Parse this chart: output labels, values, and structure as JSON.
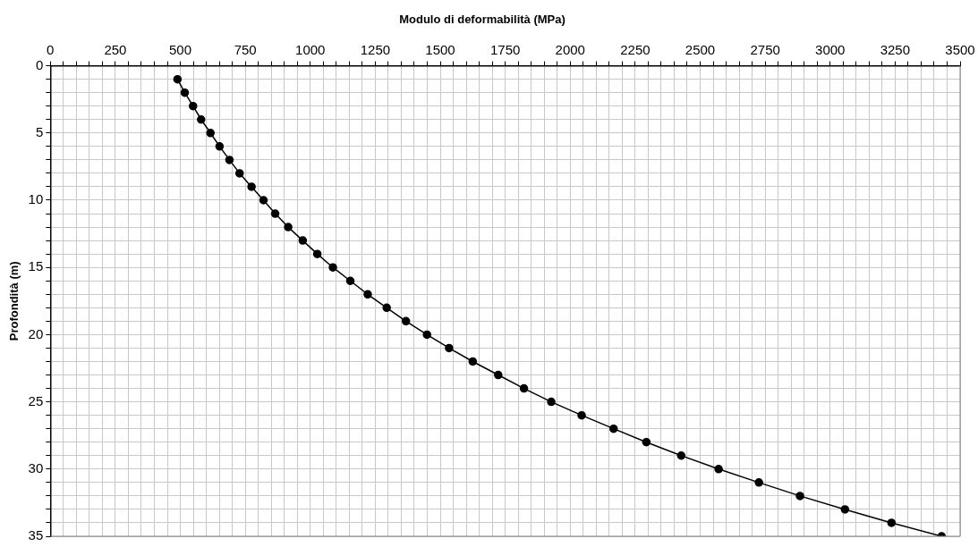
{
  "chart_data": {
    "type": "line",
    "title": "Modulo di deformabilità (MPa)",
    "ylabel": "Profondità (m)",
    "series": [
      {
        "color": "#000000",
        "x": [
          489,
          517,
          549,
          580,
          616,
          651,
          689,
          728,
          774,
          820,
          865,
          915,
          971,
          1027,
          1087,
          1154,
          1221,
          1294,
          1368,
          1449,
          1534,
          1625,
          1723,
          1822,
          1927,
          2044,
          2167,
          2293,
          2427,
          2571,
          2726,
          2884,
          3057,
          3236,
          3429
        ],
        "values": [
          1,
          2,
          3,
          4,
          5,
          6,
          7,
          8,
          9,
          10,
          11,
          12,
          13,
          14,
          15,
          16,
          17,
          18,
          19,
          20,
          21,
          22,
          23,
          24,
          25,
          26,
          27,
          28,
          29,
          30,
          31,
          32,
          33,
          34,
          35
        ]
      }
    ],
    "xlim": [
      0,
      3500
    ],
    "xticks": [
      0,
      {
        "value": 50,
        "label": null
      },
      {
        "value": 100,
        "label": null
      },
      {
        "value": 150,
        "label": null
      },
      {
        "value": 200,
        "label": null
      },
      250,
      {
        "value": 300,
        "label": null
      },
      {
        "value": 350,
        "label": null
      },
      {
        "value": 400,
        "label": null
      },
      {
        "value": 450,
        "label": null
      },
      500,
      {
        "value": 550,
        "label": null
      },
      {
        "value": 600,
        "label": null
      },
      {
        "value": 650,
        "label": null
      },
      {
        "value": 700,
        "label": null
      },
      750,
      {
        "value": 800,
        "label": null
      },
      {
        "value": 850,
        "label": null
      },
      {
        "value": 900,
        "label": null
      },
      {
        "value": 950,
        "label": null
      },
      1000,
      {
        "value": 1050,
        "label": null
      },
      {
        "value": 1100,
        "label": null
      },
      {
        "value": 1150,
        "label": null
      },
      {
        "value": 1200,
        "label": null
      },
      1250,
      {
        "value": 1300,
        "label": null
      },
      {
        "value": 1350,
        "label": null
      },
      {
        "value": 1400,
        "label": null
      },
      {
        "value": 1450,
        "label": null
      },
      1500,
      {
        "value": 1550,
        "label": null
      },
      {
        "value": 1600,
        "label": null
      },
      {
        "value": 1650,
        "label": null
      },
      {
        "value": 1700,
        "label": null
      },
      1750,
      {
        "value": 1800,
        "label": null
      },
      {
        "value": 1850,
        "label": null
      },
      {
        "value": 1900,
        "label": null
      },
      {
        "value": 1950,
        "label": null
      },
      2000,
      {
        "value": 2050,
        "label": null
      },
      {
        "value": 2100,
        "label": null
      },
      {
        "value": 2150,
        "label": null
      },
      {
        "value": 2200,
        "label": null
      },
      2250,
      {
        "value": 2300,
        "label": null
      },
      {
        "value": 2350,
        "label": null
      },
      {
        "value": 2400,
        "label": null
      },
      {
        "value": 2450,
        "label": null
      },
      2500,
      {
        "value": 2550,
        "label": null
      },
      {
        "value": 2600,
        "label": null
      },
      {
        "value": 2650,
        "label": null
      },
      {
        "value": 2700,
        "label": null
      },
      2750,
      {
        "value": 2800,
        "label": null
      },
      {
        "value": 2850,
        "label": null
      },
      {
        "value": 2900,
        "label": null
      },
      {
        "value": 2950,
        "label": null
      },
      3000,
      {
        "value": 3050,
        "label": null
      },
      {
        "value": 3100,
        "label": null
      },
      {
        "value": 3150,
        "label": null
      },
      {
        "value": 3200,
        "label": null
      },
      3250,
      {
        "value": 3300,
        "label": null
      },
      {
        "value": 3350,
        "label": null
      },
      {
        "value": 3400,
        "label": null
      },
      {
        "value": 3450,
        "label": null
      },
      3500
    ],
    "ylim": [
      35,
      0
    ],
    "yticks": [
      0,
      {
        "value": 1,
        "label": null
      },
      {
        "value": 2,
        "label": null
      },
      {
        "value": 3,
        "label": null
      },
      {
        "value": 4,
        "label": null
      },
      5,
      {
        "value": 6,
        "label": null
      },
      {
        "value": 7,
        "label": null
      },
      {
        "value": 8,
        "label": null
      },
      {
        "value": 9,
        "label": null
      },
      10,
      {
        "value": 11,
        "label": null
      },
      {
        "value": 12,
        "label": null
      },
      {
        "value": 13,
        "label": null
      },
      {
        "value": 14,
        "label": null
      },
      15,
      {
        "value": 16,
        "label": null
      },
      {
        "value": 17,
        "label": null
      },
      {
        "value": 18,
        "label": null
      },
      {
        "value": 19,
        "label": null
      },
      20,
      {
        "value": 21,
        "label": null
      },
      {
        "value": 22,
        "label": null
      },
      {
        "value": 23,
        "label": null
      },
      {
        "value": 24,
        "label": null
      },
      25,
      {
        "value": 26,
        "label": null
      },
      {
        "value": 27,
        "label": null
      },
      {
        "value": 28,
        "label": null
      },
      {
        "value": 29,
        "label": null
      },
      30,
      {
        "value": 31,
        "label": null
      },
      {
        "value": 32,
        "label": null
      },
      {
        "value": 33,
        "label": null
      },
      {
        "value": 34,
        "label": null
      },
      35
    ],
    "grid": true,
    "marker": "circle",
    "line_style": "solid",
    "legend": false
  }
}
